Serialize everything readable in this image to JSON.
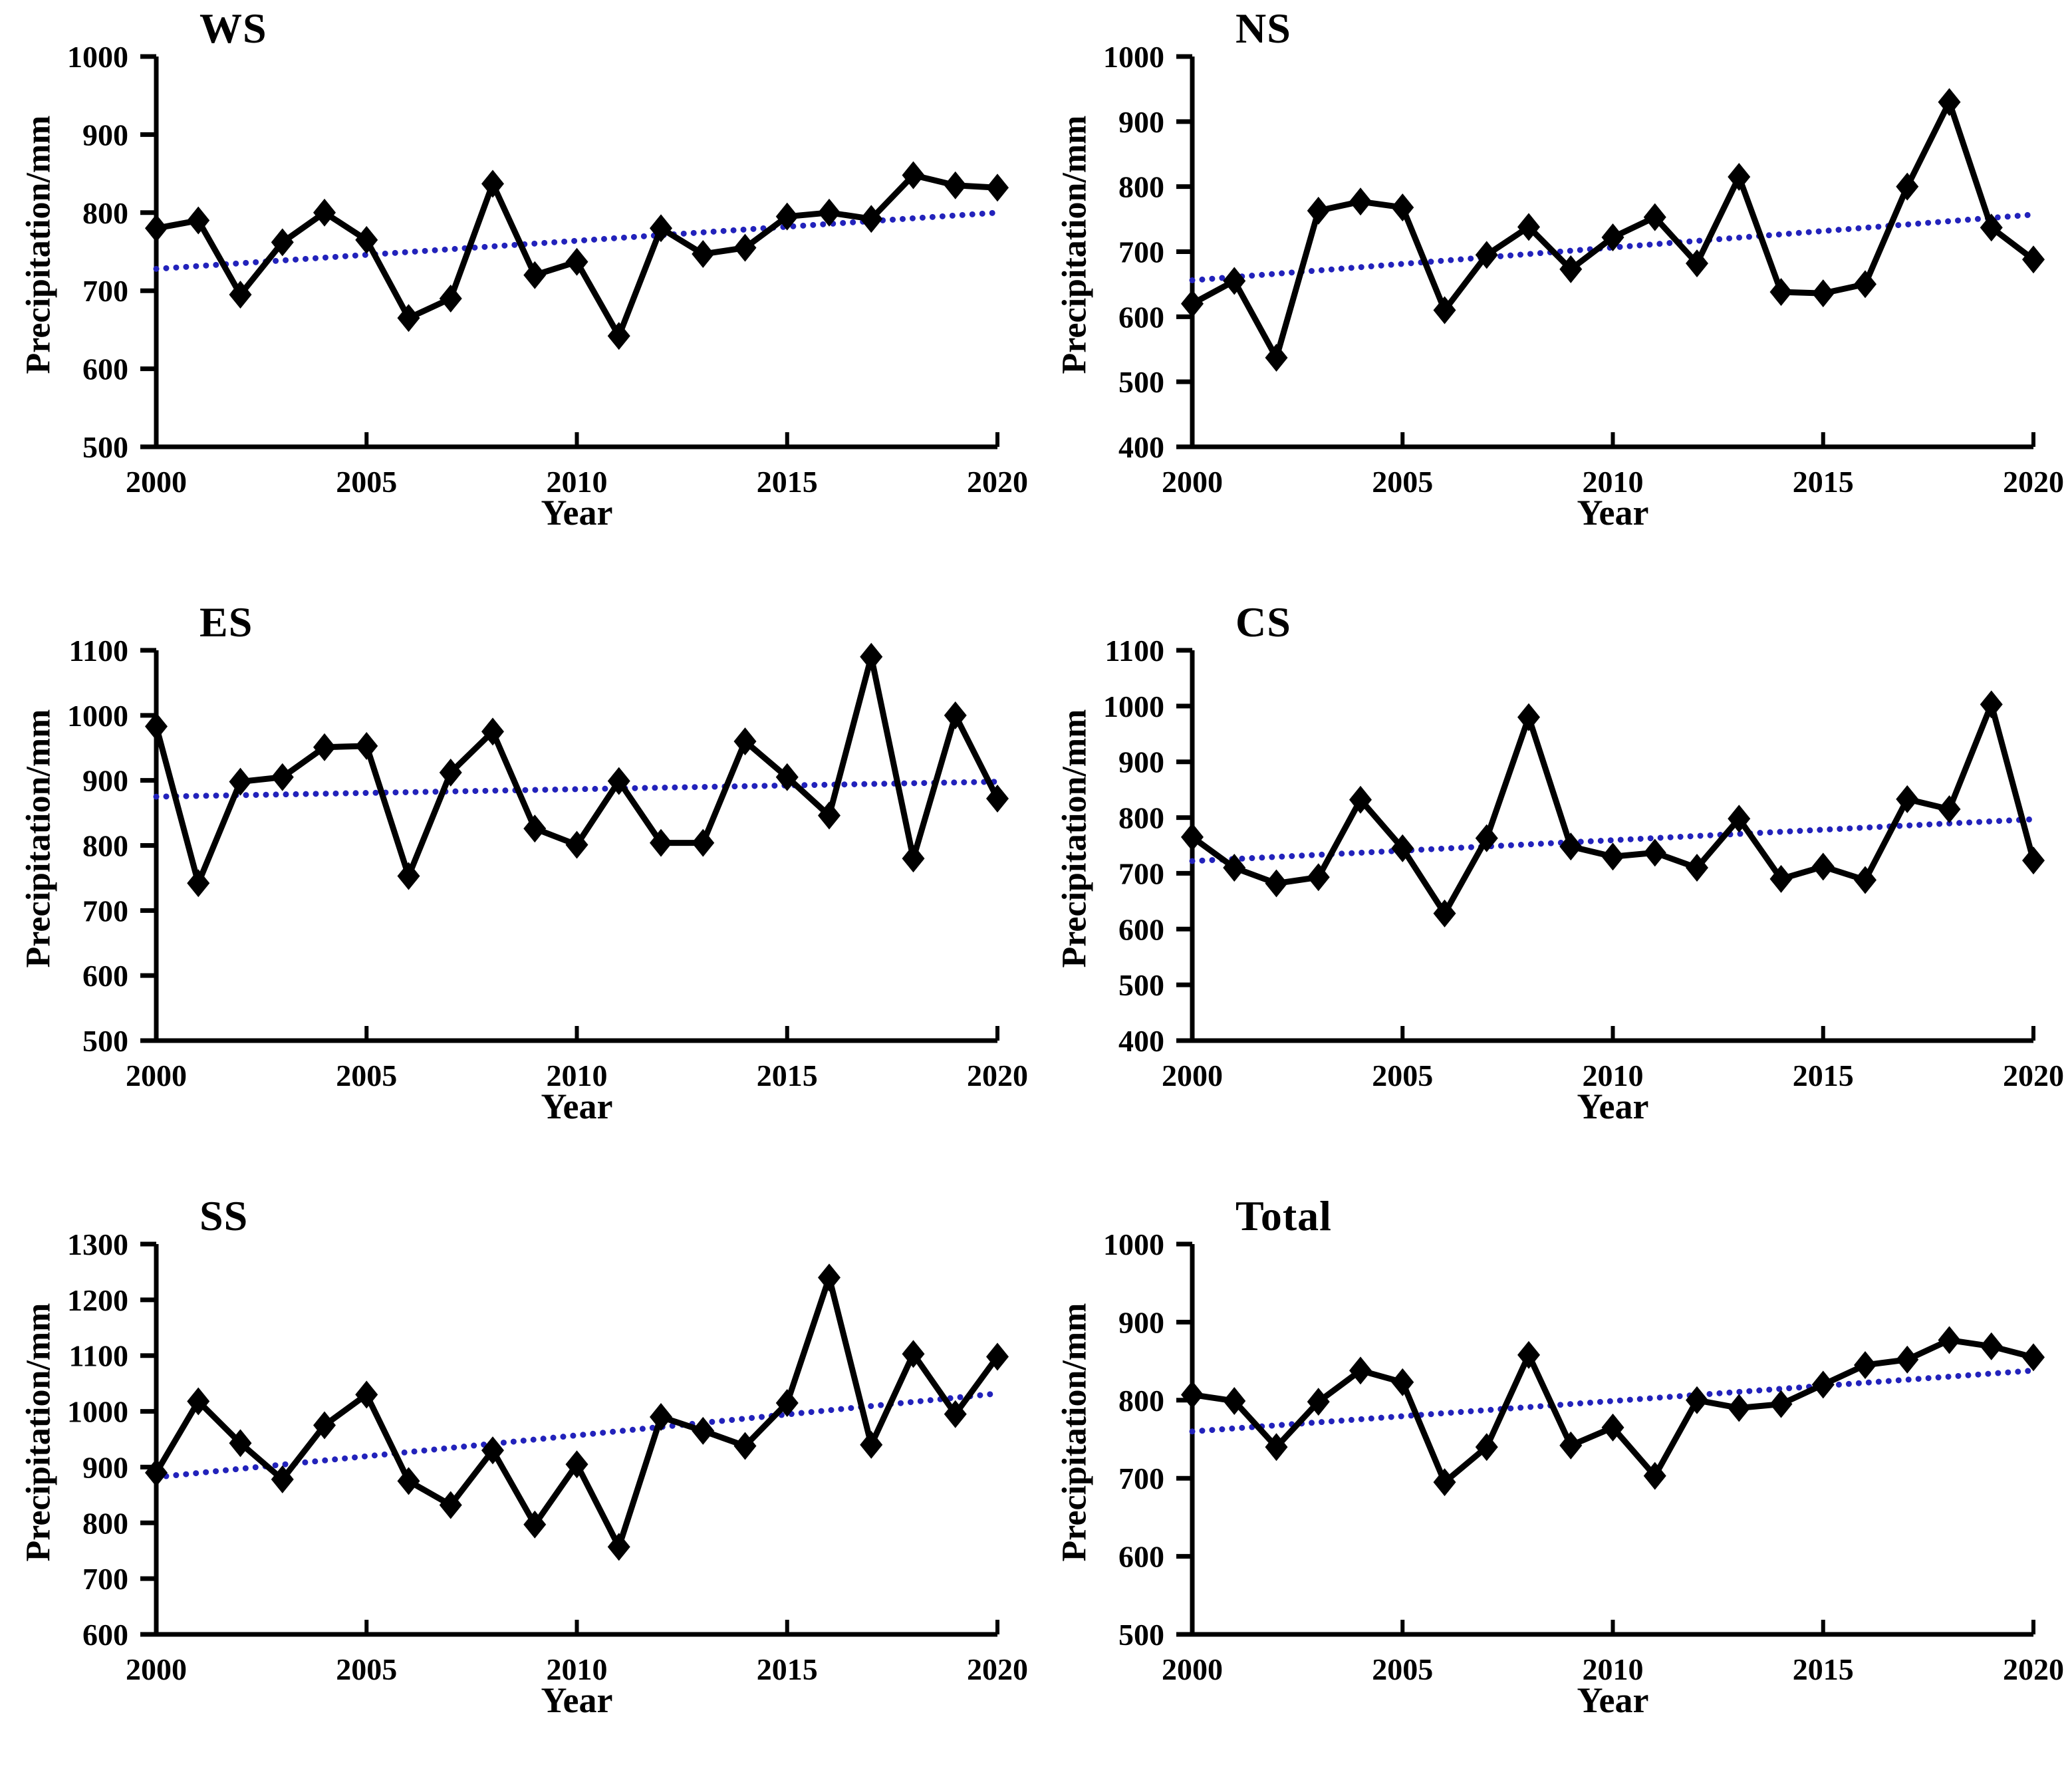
{
  "figure": {
    "years": [
      2000,
      2001,
      2002,
      2003,
      2004,
      2005,
      2006,
      2007,
      2008,
      2009,
      2010,
      2011,
      2012,
      2013,
      2014,
      2015,
      2016,
      2017,
      2018,
      2019,
      2020
    ],
    "xticks": [
      2000,
      2005,
      2010,
      2015,
      2020
    ],
    "xlabel": "Year",
    "ylabel": "Precipitation/mm",
    "colors": {
      "series": "#000000",
      "trend": "#2222bb"
    }
  },
  "chart_data": [
    {
      "type": "line",
      "title": "WS",
      "xlabel": "Year",
      "ylabel": "Precipitation/mm",
      "marker": "diamond",
      "ylim": [
        500,
        1000
      ],
      "yticks": [
        500,
        600,
        700,
        800,
        900,
        1000
      ],
      "values": [
        780,
        790,
        695,
        762,
        800,
        765,
        665,
        690,
        837,
        720,
        737,
        642,
        780,
        747,
        755,
        795,
        800,
        792,
        848,
        835,
        832
      ],
      "trend_line": {
        "style": "dotted",
        "start": 728,
        "end": 800
      }
    },
    {
      "type": "line",
      "title": "NS",
      "xlabel": "Year",
      "ylabel": "Precipitation/mm",
      "marker": "diamond",
      "ylim": [
        400,
        1000
      ],
      "yticks": [
        400,
        500,
        600,
        700,
        800,
        900,
        1000
      ],
      "values": [
        620,
        655,
        537,
        763,
        777,
        768,
        610,
        695,
        738,
        673,
        722,
        753,
        682,
        815,
        638,
        636,
        650,
        800,
        930,
        737,
        688
      ],
      "trend_line": {
        "style": "dotted",
        "start": 656,
        "end": 757
      }
    },
    {
      "type": "line",
      "title": "ES",
      "xlabel": "Year",
      "ylabel": "Precipitation/mm",
      "marker": "diamond",
      "ylim": [
        500,
        1100
      ],
      "yticks": [
        500,
        600,
        700,
        800,
        900,
        1000,
        1100
      ],
      "values": [
        983,
        742,
        898,
        905,
        951,
        953,
        753,
        912,
        975,
        826,
        801,
        899,
        804,
        804,
        960,
        905,
        846,
        1090,
        780,
        1000,
        872
      ],
      "trend_line": {
        "style": "dotted",
        "start": 875,
        "end": 898
      }
    },
    {
      "type": "line",
      "title": "CS",
      "xlabel": "Year",
      "ylabel": "Precipitation/mm",
      "marker": "diamond",
      "ylim": [
        400,
        1100
      ],
      "yticks": [
        400,
        500,
        600,
        700,
        800,
        900,
        1000,
        1100
      ],
      "values": [
        765,
        710,
        682,
        693,
        832,
        745,
        628,
        763,
        980,
        748,
        730,
        737,
        710,
        798,
        690,
        712,
        688,
        833,
        815,
        1003,
        723
      ],
      "trend_line": {
        "style": "dotted",
        "start": 722,
        "end": 797
      }
    },
    {
      "type": "line",
      "title": "SS",
      "xlabel": "Year",
      "ylabel": "Precipitation/mm",
      "marker": "diamond",
      "ylim": [
        600,
        1300
      ],
      "yticks": [
        600,
        700,
        800,
        900,
        1000,
        1100,
        1200,
        1300
      ],
      "values": [
        890,
        1018,
        943,
        878,
        975,
        1030,
        875,
        832,
        930,
        797,
        905,
        757,
        990,
        965,
        938,
        1015,
        1240,
        940,
        1103,
        995,
        1098
      ],
      "trend_line": {
        "style": "dotted",
        "start": 882,
        "end": 1032
      }
    },
    {
      "type": "line",
      "title": "Total",
      "xlabel": "Year",
      "ylabel": "Precipitation/mm",
      "marker": "diamond",
      "ylim": [
        500,
        1000
      ],
      "yticks": [
        500,
        600,
        700,
        800,
        900,
        1000
      ],
      "values": [
        807,
        799,
        740,
        798,
        838,
        823,
        695,
        740,
        858,
        742,
        765,
        703,
        800,
        790,
        795,
        820,
        845,
        852,
        877,
        869,
        855
      ],
      "trend_line": {
        "style": "dotted",
        "start": 760,
        "end": 838
      }
    }
  ]
}
